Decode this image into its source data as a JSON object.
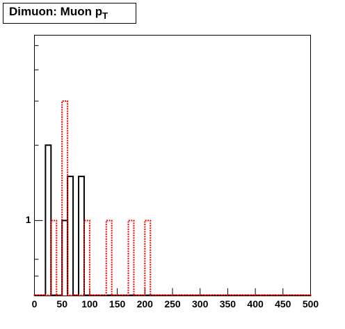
{
  "chart_data": {
    "type": "histogram",
    "title": "Dimuon: Muon p",
    "title_subscript": "T",
    "bins": [
      0,
      10,
      20,
      30,
      40,
      50,
      60,
      70,
      80,
      90,
      100,
      110,
      120,
      130,
      140,
      150,
      160,
      170,
      180,
      190,
      200,
      210,
      220,
      230,
      240,
      250,
      260,
      270,
      280,
      290,
      300,
      310,
      320,
      330,
      340,
      350,
      360,
      370,
      380,
      390,
      400,
      410,
      420,
      430,
      440,
      450,
      460,
      470,
      480,
      490,
      500
    ],
    "series": [
      {
        "color": "#000000",
        "dashed": false,
        "values": [
          0,
          0,
          2,
          0,
          0,
          1,
          1.5,
          0,
          1.5,
          0,
          0,
          0,
          0,
          0,
          0,
          0,
          0,
          0,
          0,
          0,
          0,
          0,
          0,
          0,
          0,
          0,
          0,
          0,
          0,
          0,
          0,
          0,
          0,
          0,
          0,
          0,
          0,
          0,
          0,
          0,
          0,
          0,
          0,
          0,
          0,
          0,
          0,
          0,
          0,
          0
        ]
      },
      {
        "color": "#ff0000",
        "dashed": true,
        "values": [
          0,
          0,
          0,
          1,
          0,
          3,
          0,
          0,
          0,
          1,
          0,
          0,
          0,
          1,
          0,
          0,
          0,
          1,
          0,
          0,
          1,
          0,
          0,
          0,
          0,
          0,
          0,
          0,
          0,
          0,
          0,
          0,
          0,
          0,
          0,
          0,
          0,
          0,
          0,
          0,
          0,
          0,
          0,
          0,
          0,
          0,
          0,
          0,
          0,
          0
        ]
      }
    ],
    "xlim": [
      0,
      500
    ],
    "xticks": [
      0,
      50,
      100,
      150,
      200,
      250,
      300,
      350,
      400,
      450,
      500
    ],
    "ylim": [
      0.5,
      5.5
    ],
    "log_y": true,
    "yticks": [
      1
    ],
    "yminor_ticks": [
      0.6,
      0.7,
      2,
      3,
      4,
      5
    ]
  }
}
